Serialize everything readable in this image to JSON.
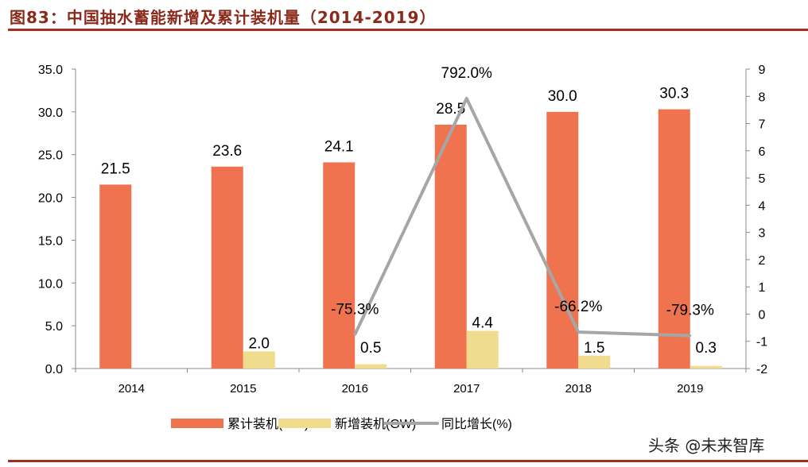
{
  "title": "图83：中国抽水蓄能新增及累计装机量（2014-2019）",
  "watermark": "头条 @未来智库",
  "chart_data": {
    "type": "bar",
    "categories": [
      "2014",
      "2015",
      "2016",
      "2017",
      "2018",
      "2019"
    ],
    "y_left": {
      "range": [
        0,
        35
      ],
      "ticks": [
        "0.0",
        "5.0",
        "10.0",
        "15.0",
        "20.0",
        "25.0",
        "30.0",
        "35.0"
      ]
    },
    "y_right": {
      "range": [
        -2,
        9
      ],
      "ticks": [
        "-2",
        "-1",
        "0",
        "1",
        "2",
        "3",
        "4",
        "5",
        "6",
        "7",
        "8",
        "9"
      ]
    },
    "series": [
      {
        "name": "累计装机(GW)",
        "type": "bar",
        "axis": "left",
        "color": "#F07350",
        "values": [
          21.5,
          23.6,
          24.1,
          28.5,
          30.0,
          30.3
        ],
        "labels": [
          "21.5",
          "23.6",
          "24.1",
          "28.5",
          "30.0",
          "30.3"
        ]
      },
      {
        "name": "新增装机(GW)",
        "type": "bar",
        "axis": "left",
        "color": "#F0DC8C",
        "values": [
          null,
          2.0,
          0.5,
          4.4,
          1.5,
          0.3
        ],
        "labels": [
          "",
          "2.0",
          "0.5",
          "4.4",
          "1.5",
          "0.3"
        ]
      },
      {
        "name": "同比增长(%)",
        "type": "line",
        "axis": "right",
        "color": "#A6A6A6",
        "values": [
          null,
          null,
          -0.753,
          7.92,
          -0.662,
          -0.793
        ],
        "labels": [
          "",
          "",
          "-75.3%",
          "792.0%",
          "-66.2%",
          "-79.3%"
        ]
      }
    ],
    "legend": "bottom",
    "grid": false
  }
}
